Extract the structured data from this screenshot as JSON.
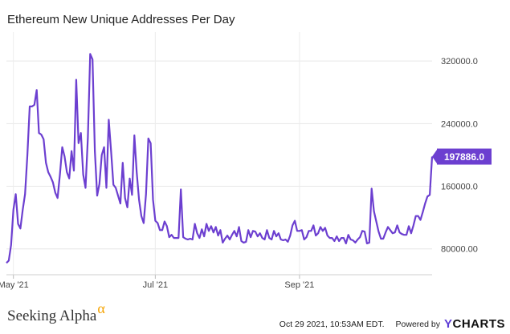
{
  "chart_data": {
    "type": "line",
    "title": "Ethereum New Unique Addresses Per Day",
    "xlabel": "",
    "ylabel": "",
    "ylim": [
      47000,
      357000
    ],
    "yticks": [
      {
        "value": 80000,
        "label": "80000.00"
      },
      {
        "value": 160000,
        "label": "160000.0"
      },
      {
        "value": 240000,
        "label": "240000.0"
      },
      {
        "value": 320000,
        "label": "320000.0"
      }
    ],
    "xticks": [
      {
        "date": "2021-05-01",
        "label": "May '21"
      },
      {
        "date": "2021-07-01",
        "label": "Jul '21"
      },
      {
        "date": "2021-09-01",
        "label": "Sep '21"
      }
    ],
    "xlim": [
      "2021-04-28",
      "2021-10-28"
    ],
    "grid": true,
    "series": [
      {
        "color": "#6c3fd0",
        "last_label": "197886.0",
        "x": [
          "2021-04-28",
          "2021-04-29",
          "2021-04-30",
          "2021-05-01",
          "2021-05-02",
          "2021-05-03",
          "2021-05-04",
          "2021-05-05",
          "2021-05-06",
          "2021-05-07",
          "2021-05-08",
          "2021-05-09",
          "2021-05-10",
          "2021-05-11",
          "2021-05-12",
          "2021-05-13",
          "2021-05-14",
          "2021-05-15",
          "2021-05-16",
          "2021-05-17",
          "2021-05-18",
          "2021-05-19",
          "2021-05-20",
          "2021-05-21",
          "2021-05-22",
          "2021-05-23",
          "2021-05-24",
          "2021-05-25",
          "2021-05-26",
          "2021-05-27",
          "2021-05-28",
          "2021-05-29",
          "2021-05-30",
          "2021-05-31",
          "2021-06-01",
          "2021-06-02",
          "2021-06-03",
          "2021-06-04",
          "2021-06-05",
          "2021-06-06",
          "2021-06-07",
          "2021-06-08",
          "2021-06-09",
          "2021-06-10",
          "2021-06-11",
          "2021-06-12",
          "2021-06-13",
          "2021-06-14",
          "2021-06-15",
          "2021-06-16",
          "2021-06-17",
          "2021-06-18",
          "2021-06-19",
          "2021-06-20",
          "2021-06-21",
          "2021-06-22",
          "2021-06-23",
          "2021-06-24",
          "2021-06-25",
          "2021-06-26",
          "2021-06-27",
          "2021-06-28",
          "2021-06-29",
          "2021-06-30",
          "2021-07-01",
          "2021-07-02",
          "2021-07-03",
          "2021-07-04",
          "2021-07-05",
          "2021-07-06",
          "2021-07-07",
          "2021-07-08",
          "2021-07-09",
          "2021-07-10",
          "2021-07-11",
          "2021-07-12",
          "2021-07-13",
          "2021-07-14",
          "2021-07-15",
          "2021-07-16",
          "2021-07-17",
          "2021-07-18",
          "2021-07-19",
          "2021-07-20",
          "2021-07-21",
          "2021-07-22",
          "2021-07-23",
          "2021-07-24",
          "2021-07-25",
          "2021-07-26",
          "2021-07-27",
          "2021-07-28",
          "2021-07-29",
          "2021-07-30",
          "2021-07-31",
          "2021-08-01",
          "2021-08-02",
          "2021-08-03",
          "2021-08-04",
          "2021-08-05",
          "2021-08-06",
          "2021-08-07",
          "2021-08-08",
          "2021-08-09",
          "2021-08-10",
          "2021-08-11",
          "2021-08-12",
          "2021-08-13",
          "2021-08-14",
          "2021-08-15",
          "2021-08-16",
          "2021-08-17",
          "2021-08-18",
          "2021-08-19",
          "2021-08-20",
          "2021-08-21",
          "2021-08-22",
          "2021-08-23",
          "2021-08-24",
          "2021-08-25",
          "2021-08-26",
          "2021-08-27",
          "2021-08-28",
          "2021-08-29",
          "2021-08-30",
          "2021-08-31",
          "2021-09-01",
          "2021-09-02",
          "2021-09-03",
          "2021-09-04",
          "2021-09-05",
          "2021-09-06",
          "2021-09-07",
          "2021-09-08",
          "2021-09-09",
          "2021-09-10",
          "2021-09-11",
          "2021-09-12",
          "2021-09-13",
          "2021-09-14",
          "2021-09-15",
          "2021-09-16",
          "2021-09-17",
          "2021-09-18",
          "2021-09-19",
          "2021-09-20",
          "2021-09-21",
          "2021-09-22",
          "2021-09-23",
          "2021-09-24",
          "2021-09-25",
          "2021-09-26",
          "2021-09-27",
          "2021-09-28",
          "2021-09-29",
          "2021-09-30",
          "2021-10-01",
          "2021-10-02",
          "2021-10-03",
          "2021-10-04",
          "2021-10-05",
          "2021-10-06",
          "2021-10-07",
          "2021-10-08",
          "2021-10-09",
          "2021-10-10",
          "2021-10-11",
          "2021-10-12",
          "2021-10-13",
          "2021-10-14",
          "2021-10-15",
          "2021-10-16",
          "2021-10-17",
          "2021-10-18",
          "2021-10-19",
          "2021-10-20",
          "2021-10-21",
          "2021-10-22",
          "2021-10-23",
          "2021-10-24",
          "2021-10-25",
          "2021-10-26",
          "2021-10-27",
          "2021-10-28"
        ],
        "y": [
          62000,
          65000,
          85000,
          130000,
          150000,
          112000,
          106000,
          130000,
          150000,
          200000,
          262000,
          262000,
          264000,
          283000,
          228000,
          226000,
          220000,
          190000,
          178000,
          172000,
          165000,
          152000,
          145000,
          175000,
          210000,
          198000,
          178000,
          170000,
          205000,
          180000,
          296000,
          215000,
          228000,
          175000,
          158000,
          222000,
          329000,
          322000,
          205000,
          148000,
          163000,
          200000,
          210000,
          158000,
          245000,
          205000,
          162000,
          158000,
          148000,
          138000,
          190000,
          145000,
          133000,
          170000,
          149000,
          225000,
          178000,
          143000,
          122000,
          113000,
          150000,
          221000,
          215000,
          143000,
          116000,
          113000,
          104000,
          104000,
          115000,
          109000,
          95000,
          98000,
          94000,
          94000,
          94000,
          156000,
          95000,
          93000,
          92000,
          93000,
          92000,
          112000,
          100000,
          94000,
          105000,
          96000,
          112000,
          103000,
          109000,
          101000,
          108000,
          97000,
          104000,
          88000,
          93000,
          97000,
          92000,
          98000,
          103000,
          96000,
          108000,
          90000,
          88000,
          89000,
          104000,
          95000,
          103000,
          102000,
          96000,
          100000,
          94000,
          92000,
          104000,
          94000,
          92000,
          103000,
          96000,
          100000,
          92000,
          91000,
          92000,
          89000,
          97000,
          110000,
          116000,
          103000,
          103000,
          104000,
          92000,
          95000,
          103000,
          103000,
          110000,
          97000,
          100000,
          108000,
          103000,
          107000,
          97000,
          94000,
          94000,
          90000,
          96000,
          90000,
          94000,
          94000,
          87000,
          98000,
          92000,
          91000,
          88000,
          92000,
          95000,
          103000,
          102000,
          87000,
          88000,
          157000,
          128000,
          115000,
          102000,
          93000,
          93000,
          101000,
          108000,
          104000,
          100000,
          101000,
          110000,
          101000,
          99000,
          98000,
          98000,
          109000,
          100000,
          110000,
          122000,
          122000,
          117000,
          127000,
          138000,
          147000,
          149000,
          197886
        ]
      }
    ]
  },
  "footer": {
    "brand": "Seeking Alpha",
    "brand_mark": "α",
    "timestamp": "Oct 29 2021, 10:53AM EDT.",
    "powered_by": "Powered by",
    "ycharts_y": "Y",
    "ycharts_rest": "CHARTS"
  }
}
